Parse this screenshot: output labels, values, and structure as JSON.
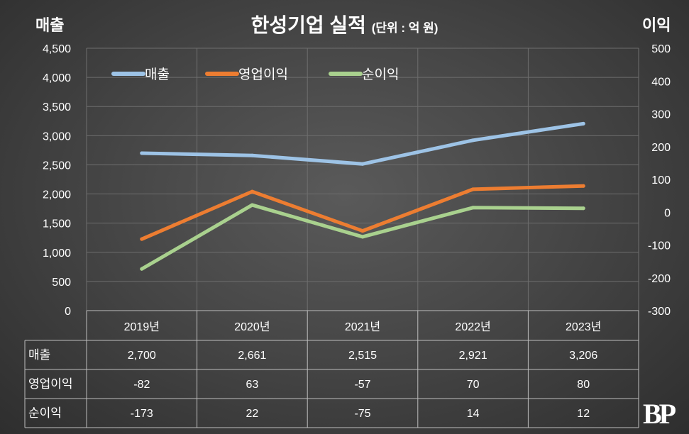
{
  "title": "한성기업 실적",
  "unit": "(단위 : 억 원)",
  "left_axis_title": "매출",
  "right_axis_title": "이익",
  "logo": "BP",
  "colors": {
    "sales": "#9dc3e6",
    "op": "#ed7d31",
    "net": "#a9d18e"
  },
  "chart_data": {
    "type": "line",
    "categories": [
      "2019년",
      "2020년",
      "2021년",
      "2022년",
      "2023년"
    ],
    "series": [
      {
        "name": "매출",
        "axis": "left",
        "values": [
          2700,
          2661,
          2515,
          2921,
          3206
        ],
        "display": [
          "2,700",
          "2,661",
          "2,515",
          "2,921",
          "3,206"
        ]
      },
      {
        "name": "영업이익",
        "axis": "right",
        "values": [
          -82,
          63,
          -57,
          70,
          80
        ],
        "display": [
          "-82",
          "63",
          "-57",
          "70",
          "80"
        ]
      },
      {
        "name": "순이익",
        "axis": "right",
        "values": [
          -173,
          22,
          -75,
          14,
          12
        ],
        "display": [
          "-173",
          "22",
          "-75",
          "14",
          "12"
        ]
      }
    ],
    "left_ylim": [
      0,
      4500
    ],
    "left_ticks": [
      "0",
      "500",
      "1,000",
      "1,500",
      "2,000",
      "2,500",
      "3,000",
      "3,500",
      "4,000",
      "4,500"
    ],
    "right_ylim": [
      -300,
      500
    ],
    "right_ticks": [
      "-300",
      "-200",
      "-100",
      "0",
      "100",
      "200",
      "300",
      "400",
      "500"
    ],
    "legend": "top-left",
    "grid": true
  }
}
